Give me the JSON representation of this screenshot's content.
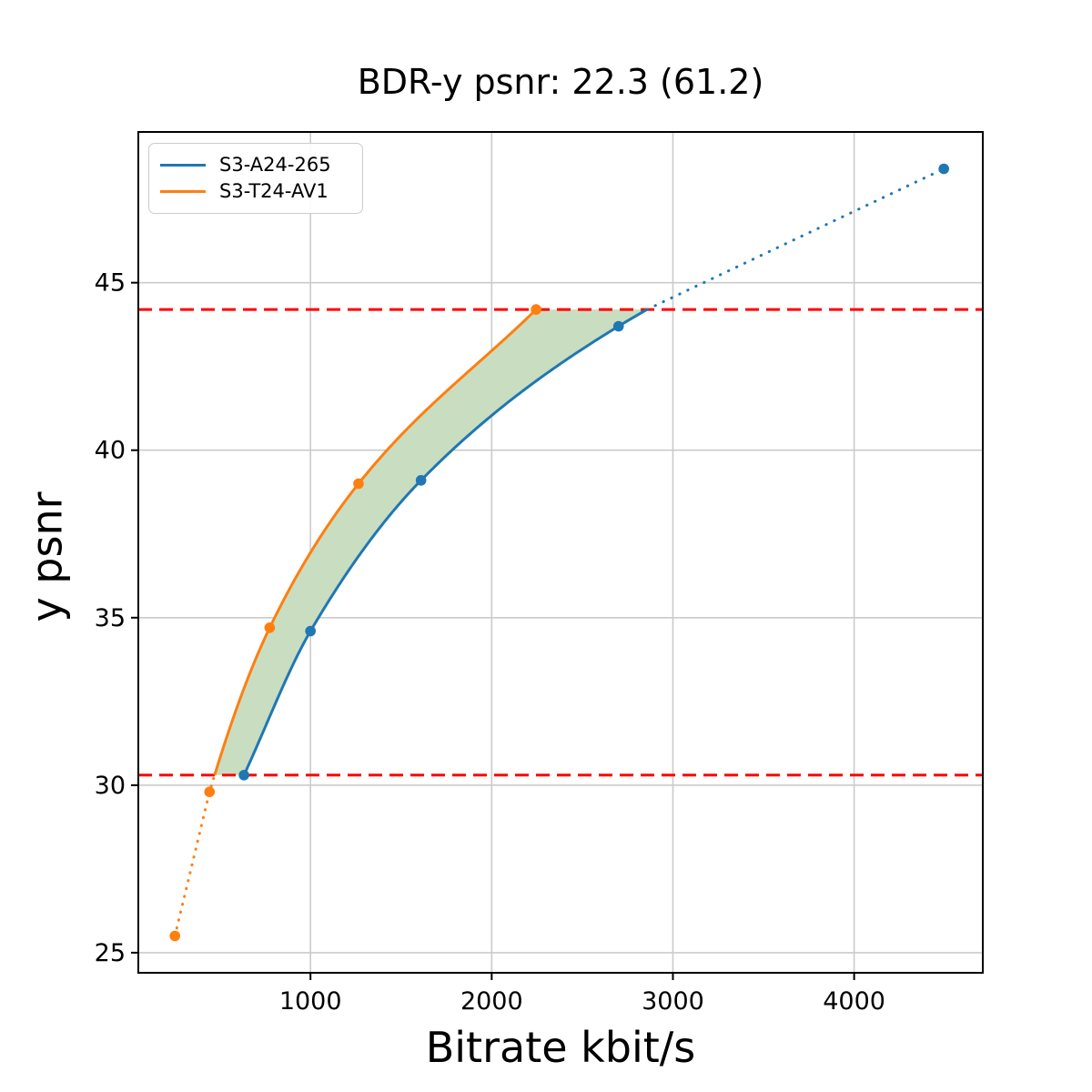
{
  "chart_data": {
    "type": "line",
    "title": "BDR-y psnr: 22.3 (61.2)",
    "xlabel": "Bitrate kbit/s",
    "ylabel": "y psnr",
    "xlim": [
      50,
      4710
    ],
    "ylim": [
      24.4,
      49.5
    ],
    "xticks": [
      1000,
      2000,
      3000,
      4000
    ],
    "yticks": [
      25,
      30,
      35,
      40,
      45
    ],
    "grid": true,
    "grid_color": "#cbcbcb",
    "legend_position": "upper left",
    "series": [
      {
        "name": "S3-A24-265",
        "color": "#1f77b4",
        "marker": "circle",
        "x": [
          633,
          1000,
          1610,
          2700,
          4495
        ],
        "y": [
          30.3,
          34.6,
          39.1,
          43.7,
          48.4
        ],
        "solid_psnr_range": [
          30.3,
          44.2
        ]
      },
      {
        "name": "S3-T24-AV1",
        "color": "#ff7f0e",
        "marker": "circle",
        "x": [
          252,
          443,
          775,
          1265,
          2245
        ],
        "y": [
          25.5,
          29.8,
          34.7,
          39.0,
          44.2
        ],
        "solid_psnr_range": [
          30.3,
          44.2
        ]
      }
    ],
    "reference_lines": [
      {
        "y": 30.3,
        "color": "#ff0000",
        "style": "dashed"
      },
      {
        "y": 44.2,
        "color": "#ff0000",
        "style": "dashed"
      }
    ],
    "shaded_region": {
      "between": [
        "S3-T24-AV1",
        "S3-A24-265"
      ],
      "y_range": [
        30.3,
        44.2
      ],
      "color": "#c9ddc1"
    }
  }
}
